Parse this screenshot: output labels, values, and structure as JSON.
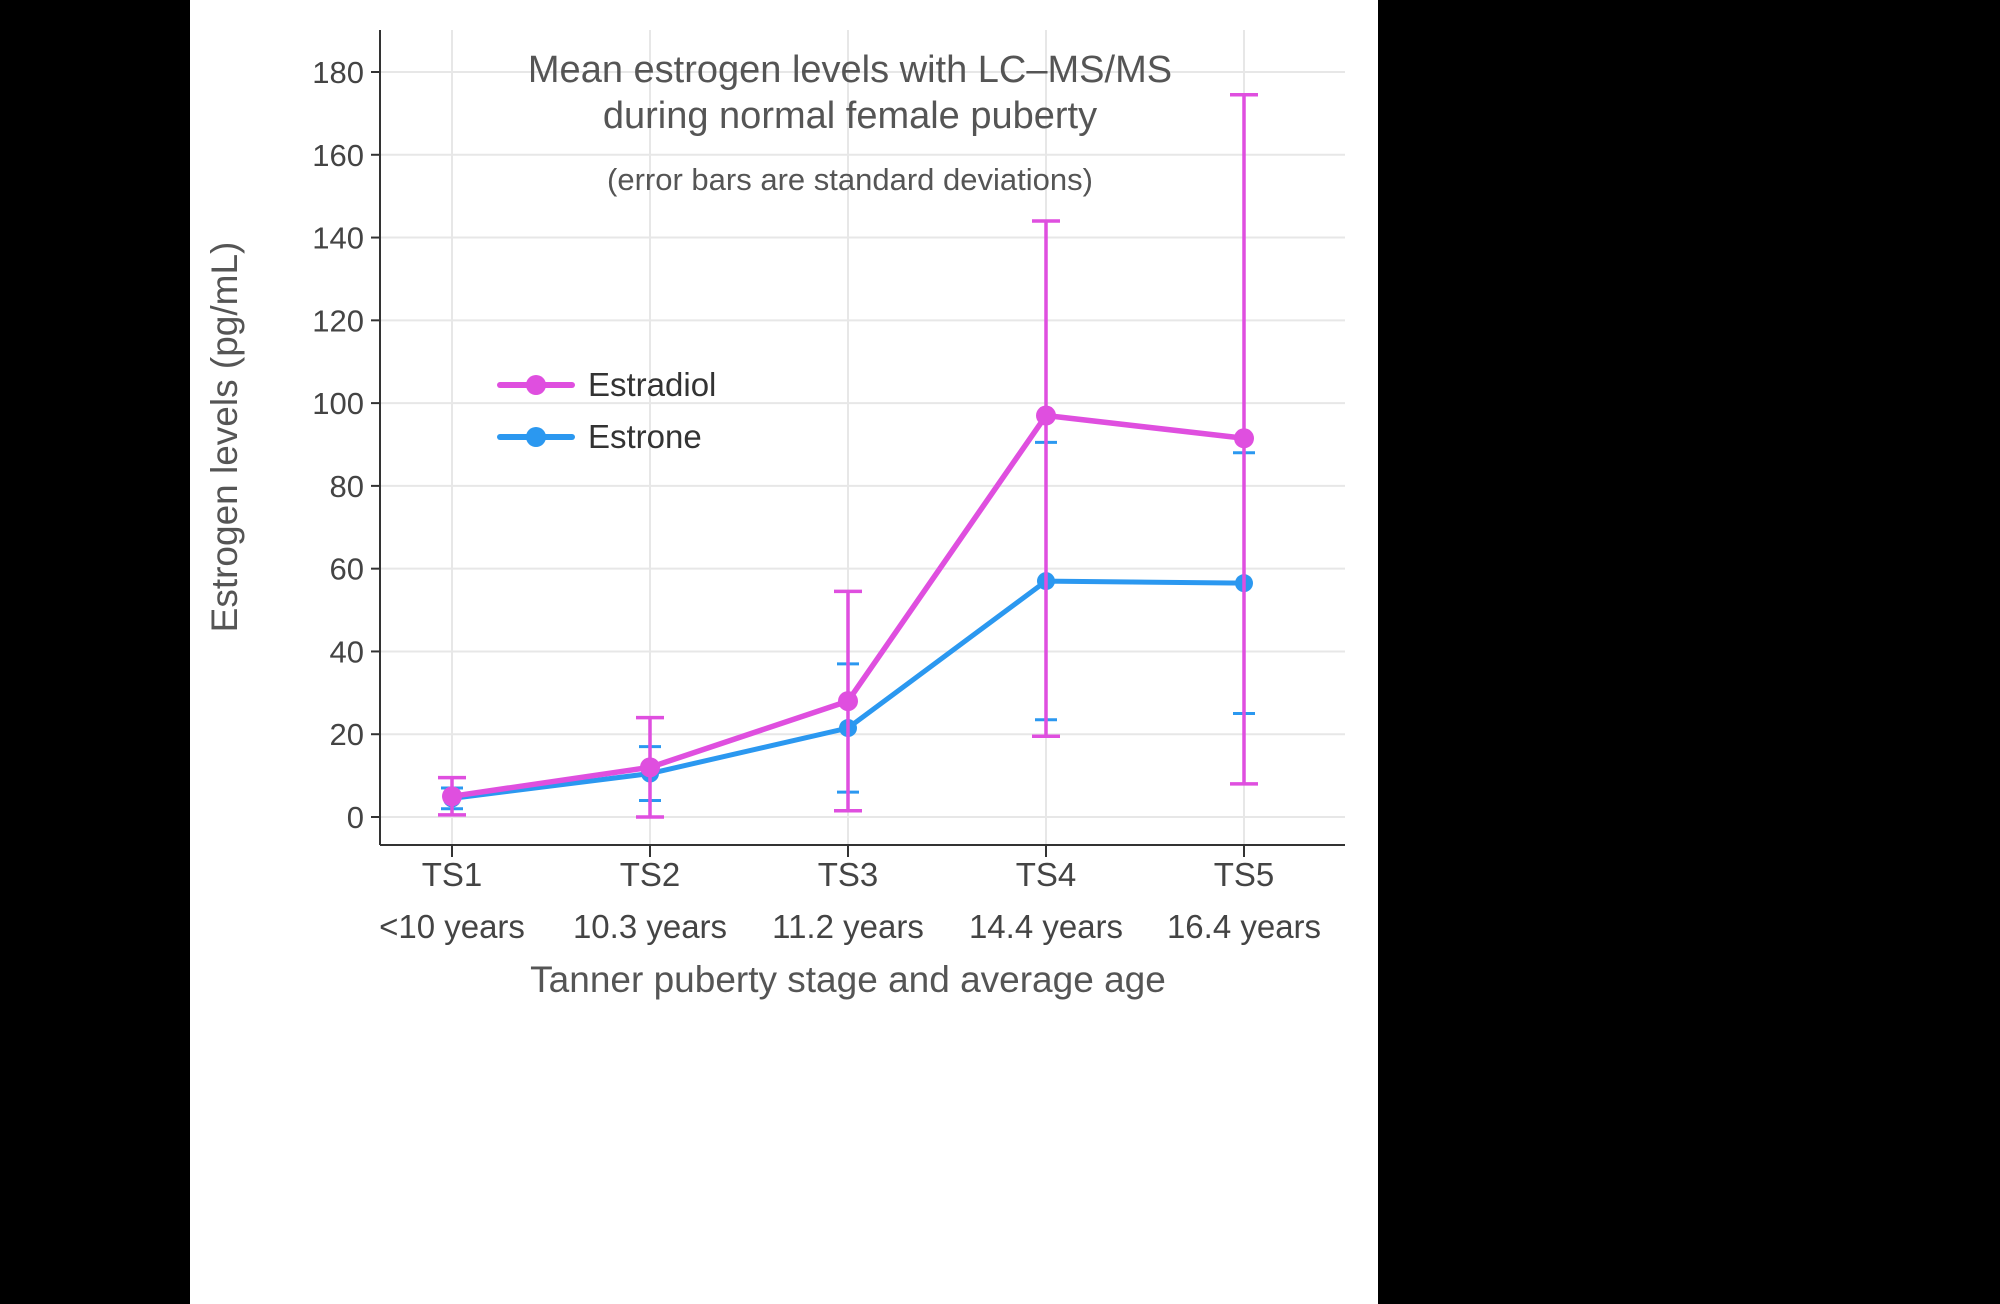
{
  "page": {
    "background": "#000000",
    "panel_background": "#ffffff"
  },
  "chart_data": {
    "type": "line",
    "title": "Mean estrogen levels with LC–MS/MS",
    "title_line2": "during normal female puberty",
    "subtitle": "(error bars are standard deviations)",
    "xlabel": "Tanner puberty stage and average age",
    "ylabel": "Estrogen levels (pg/mL)",
    "ylim": [
      0,
      180
    ],
    "ytick_step": 20,
    "grid": true,
    "legend_position": "inside-upper-left",
    "categories": [
      "TS1",
      "TS2",
      "TS3",
      "TS4",
      "TS5"
    ],
    "category_sublabels": [
      "<10 years",
      "10.3 years",
      "11.2 years",
      "14.4 years",
      "16.4 years"
    ],
    "series": [
      {
        "name": "Estrone",
        "color": "#2B98F0",
        "values": [
          4.5,
          10.5,
          21.5,
          57,
          56.5
        ],
        "err_low": [
          2,
          4,
          6,
          23.5,
          25
        ],
        "err_high": [
          7,
          17,
          37,
          90.5,
          88
        ]
      },
      {
        "name": "Estradiol",
        "color": "#DF4FDF",
        "values": [
          5,
          12,
          28,
          97,
          91.5
        ],
        "err_low": [
          0.5,
          0,
          1.5,
          19.5,
          8
        ],
        "err_high": [
          9.5,
          24,
          54.5,
          144,
          174.5
        ]
      }
    ],
    "legend_order": [
      "Estradiol",
      "Estrone"
    ],
    "colors": {
      "grid": "#E7E7E7",
      "axis": "#333333",
      "tick_text": "#444444",
      "title_text": "#555555",
      "legend_text": "#333333"
    }
  }
}
